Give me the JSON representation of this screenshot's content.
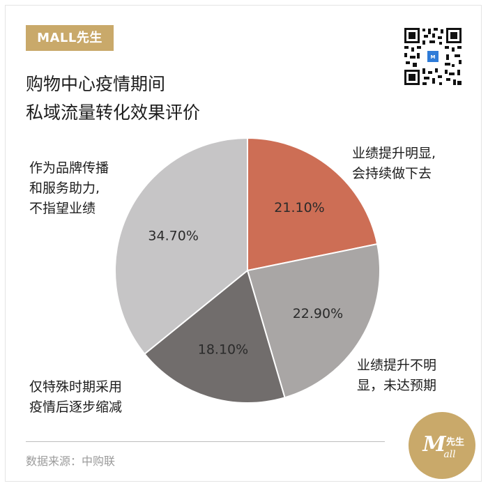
{
  "brand": {
    "badge_text": "MALL先生",
    "seal_text": "Mall先生"
  },
  "title": {
    "line1": "购物中心疫情期间",
    "line2": "私域流量转化效果评价"
  },
  "colors": {
    "accent_gold": "#c9a96a",
    "slice_1": "#cd6e55",
    "slice_2": "#a9a6a5",
    "slice_3": "#716d6c",
    "slice_4": "#c6c5c6"
  },
  "chart_data": {
    "type": "pie",
    "start_angle_deg": 0,
    "direction": "clockwise",
    "slices": [
      {
        "label_lines": [
          "业绩提升明显,",
          "会持续做下去"
        ],
        "value": 21.1,
        "value_label": "21.10%",
        "color": "#cd6e55"
      },
      {
        "label_lines": [
          "业绩提升不明",
          "显，未达预期"
        ],
        "value": 22.9,
        "value_label": "22.90%",
        "color": "#a9a6a5"
      },
      {
        "label_lines": [
          "仅特殊时期采用",
          "疫情后逐步缩减"
        ],
        "value": 18.1,
        "value_label": "18.10%",
        "color": "#716d6c"
      },
      {
        "label_lines": [
          "作为品牌传播",
          "和服务助力,",
          "不指望业绩"
        ],
        "value": 34.7,
        "value_label": "34.70%",
        "color": "#c6c5c6"
      }
    ]
  },
  "footer": {
    "source": "数据来源：中购联"
  }
}
